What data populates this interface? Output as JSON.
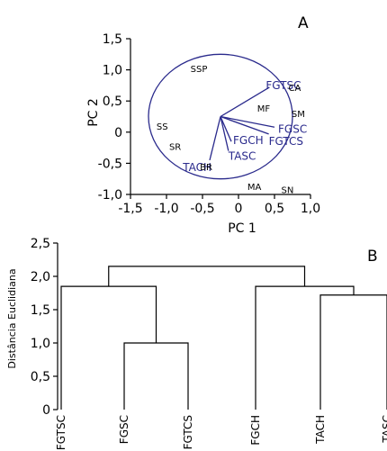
{
  "colors": {
    "vector": "#2a2a8c",
    "axis": "#000000",
    "score": "#000000"
  },
  "chart_data": [
    {
      "type": "scatter",
      "panel_label": "A",
      "xlabel": "PC 1",
      "ylabel": "PC 2",
      "xlim": [
        -1.5,
        1.0
      ],
      "ylim": [
        -1.0,
        1.5
      ],
      "xticks": [
        -1.5,
        -1.0,
        -0.5,
        0,
        0.5,
        1.0
      ],
      "yticks": [
        -1.0,
        -0.5,
        0,
        0.5,
        1.0,
        1.5
      ],
      "xtick_labels": [
        "-1,5",
        "-1,0",
        "-0,5",
        "0",
        "0,5",
        "1,0"
      ],
      "ytick_labels": [
        "-1,0",
        "-0,5",
        "0",
        "0,5",
        "1,0",
        "1,5"
      ],
      "correlation_circle": {
        "center": [
          -0.25,
          0.25
        ],
        "radius": 1.0
      },
      "vector_origin": [
        -0.25,
        0.25
      ],
      "vectors": [
        {
          "name": "FGTSC",
          "x": 0.43,
          "y": 0.72
        },
        {
          "name": "FGSC",
          "x": 0.5,
          "y": 0.08
        },
        {
          "name": "FGTCS",
          "x": 0.42,
          "y": -0.03
        },
        {
          "name": "FGCH",
          "x": -0.1,
          "y": -0.15
        },
        {
          "name": "TASC",
          "x": -0.14,
          "y": -0.3
        },
        {
          "name": "TACH",
          "x": -0.4,
          "y": -0.45
        }
      ],
      "points": [
        {
          "name": "SSP",
          "x": -0.55,
          "y": 1.02
        },
        {
          "name": "CA",
          "x": 0.78,
          "y": 0.72
        },
        {
          "name": "MF",
          "x": 0.35,
          "y": 0.39
        },
        {
          "name": "SM",
          "x": 0.83,
          "y": 0.3
        },
        {
          "name": "SS",
          "x": -1.06,
          "y": 0.1
        },
        {
          "name": "SR",
          "x": -0.88,
          "y": -0.23
        },
        {
          "name": "BR",
          "x": -0.45,
          "y": -0.55
        },
        {
          "name": "MA",
          "x": 0.22,
          "y": -0.87
        },
        {
          "name": "SN",
          "x": 0.68,
          "y": -0.92
        }
      ]
    },
    {
      "type": "dendrogram",
      "panel_label": "B",
      "ylabel": "Distância Euclidiana",
      "ylim": [
        0,
        2.5
      ],
      "yticks": [
        0,
        0.5,
        1.0,
        1.5,
        2.0,
        2.5
      ],
      "ytick_labels": [
        "0",
        "0,5",
        "1,0",
        "1,5",
        "2,0",
        "2,5"
      ],
      "leaves": [
        "FGTSC",
        "FGSC",
        "FGTCS",
        "FGCH",
        "TACH",
        "TASC"
      ],
      "merges": [
        {
          "left": 1,
          "right": 2,
          "height": 1.0
        },
        {
          "left": 4,
          "right": 5,
          "height": 1.72
        },
        {
          "left": 0,
          "right": 6,
          "height": 1.85
        },
        {
          "left": 3,
          "right": 7,
          "height": 1.85
        },
        {
          "left": 8,
          "right": 9,
          "height": 2.15
        }
      ]
    }
  ]
}
